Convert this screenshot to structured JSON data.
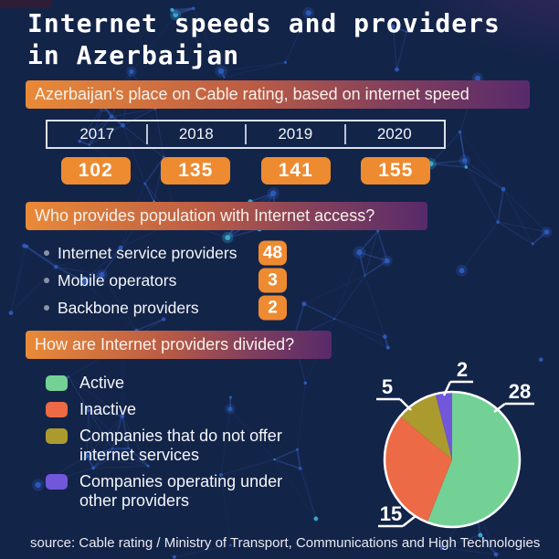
{
  "title": {
    "line1": "Internet speeds and providers",
    "line2": "in Azerbaijan"
  },
  "rating": {
    "heading": "Azerbaijan's place on Cable rating, based on internet speed",
    "years": [
      "2017",
      "2018",
      "2019",
      "2020"
    ],
    "ranks": [
      "102",
      "135",
      "141",
      "155"
    ]
  },
  "providers": {
    "heading": "Who provides population with Internet access?",
    "items": [
      {
        "label": "Internet service providers",
        "value": "48"
      },
      {
        "label": "Mobile operators",
        "value": "3"
      },
      {
        "label": "Backbone providers",
        "value": "2"
      }
    ]
  },
  "division": {
    "heading": "How are Internet providers divided?"
  },
  "chart_data": {
    "type": "pie",
    "title": "How are Internet providers divided?",
    "labels": [
      "Active",
      "Inactive",
      "Companies that do not offer internet services",
      "Companies operating under other providers"
    ],
    "values": [
      28,
      15,
      5,
      2
    ],
    "total": 50,
    "colors": [
      "#74d196",
      "#ec6a45",
      "#ab9b2e",
      "#7157d9"
    ],
    "start_angle_deg": 0,
    "direction": "clockwise",
    "outline_color": "#ffffff",
    "legend_position": "left",
    "data_labels_shown": true
  },
  "source": "source: Cable rating / Ministry of Transport, Communications and High Technologies",
  "theme": {
    "background": "#132449",
    "banner_gradient_start": "#e98a38",
    "banner_gradient_end": "#582a6b",
    "badge_orange": "#ee8b31",
    "plexus_line": "#3b6bd2",
    "plexus_dot": "#2f5dc0",
    "plexus_accent": "#38b3d6"
  }
}
